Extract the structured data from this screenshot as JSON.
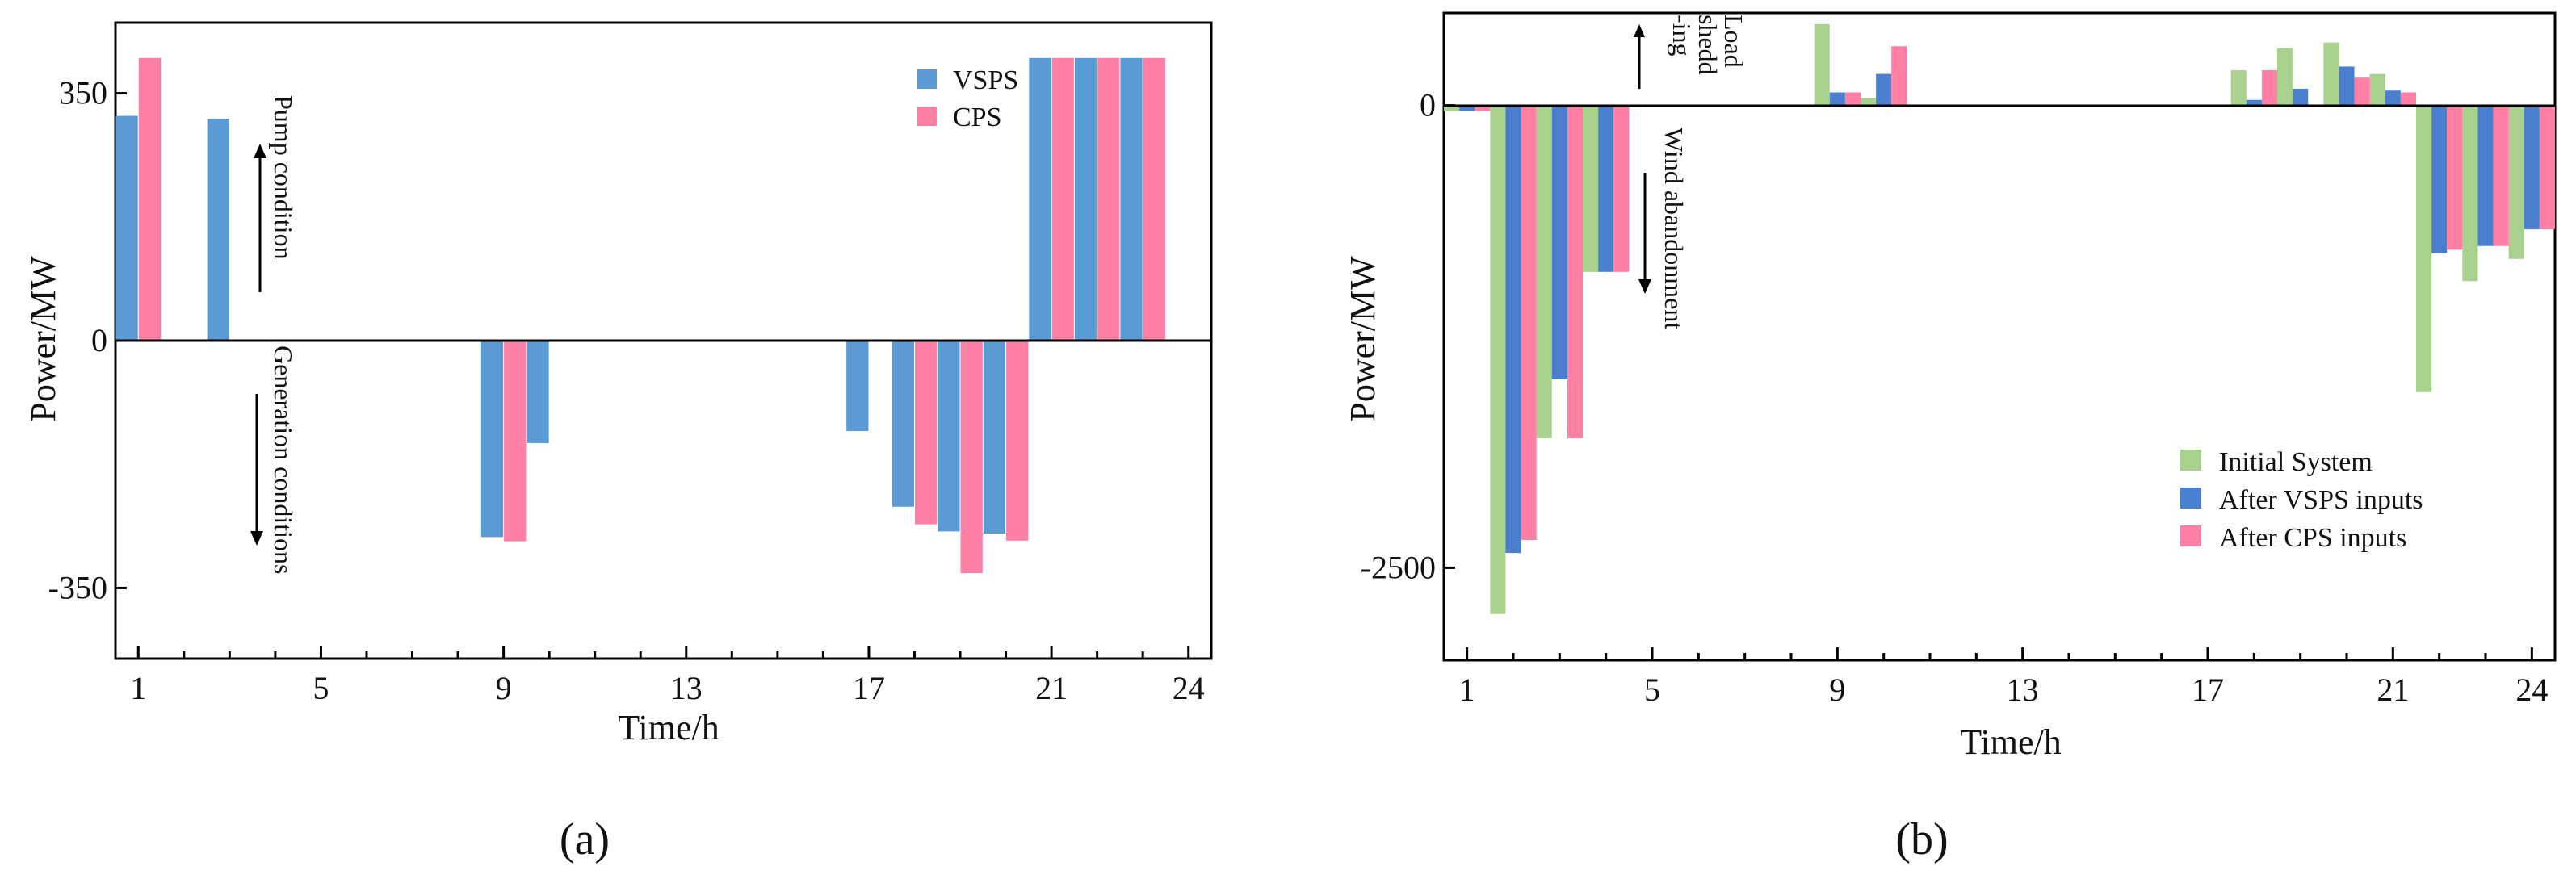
{
  "chart_data": [
    {
      "type": "bar",
      "title": "",
      "xlabel": "Time/h",
      "ylabel": "Power/MW",
      "xlim": [
        0.5,
        24.5
      ],
      "ylim": [
        -450,
        450
      ],
      "x_ticks": [
        1,
        5,
        9,
        13,
        17,
        21,
        24
      ],
      "y_ticks": [
        -350,
        0,
        350
      ],
      "grid": false,
      "legend_position": "top-right",
      "caption": "(a)",
      "annotations": [
        "Pump condition",
        "Generation conditions"
      ],
      "x": [
        1,
        2,
        3,
        4,
        5,
        6,
        7,
        8,
        9,
        10,
        11,
        12,
        13,
        14,
        15,
        16,
        17,
        18,
        19,
        20,
        21,
        22,
        23,
        24
      ],
      "series": [
        {
          "name": "VSPS",
          "color": "#5b9bd5",
          "values": [
            318,
            0,
            314,
            0,
            0,
            0,
            0,
            0,
            -278,
            -145,
            0,
            0,
            0,
            0,
            0,
            0,
            -128,
            -235,
            -270,
            -273,
            400,
            400,
            400,
            0
          ]
        },
        {
          "name": "CPS",
          "color": "#ff7fa5",
          "values": [
            400,
            0,
            0,
            0,
            0,
            0,
            0,
            0,
            -284,
            0,
            0,
            0,
            0,
            0,
            0,
            0,
            0,
            -260,
            -329,
            -283,
            400,
            400,
            400,
            0
          ]
        }
      ]
    },
    {
      "type": "bar",
      "title": "",
      "xlabel": "Time/h",
      "ylabel": "Power/MW",
      "xlim": [
        0.5,
        24.5
      ],
      "ylim": [
        -3000,
        500
      ],
      "x_ticks": [
        1,
        5,
        9,
        13,
        17,
        21,
        24
      ],
      "y_ticks": [
        -2500,
        0
      ],
      "grid": false,
      "legend_position": "lower-right",
      "caption": "(b)",
      "annotations": [
        "Load",
        "shedd",
        "-ing",
        "Wind abandonment"
      ],
      "x": [
        1,
        2,
        3,
        4,
        5,
        6,
        7,
        8,
        9,
        10,
        11,
        12,
        13,
        14,
        15,
        16,
        17,
        18,
        19,
        20,
        21,
        22,
        23,
        24
      ],
      "series": [
        {
          "name": "Initial System",
          "color": "#a9d18e",
          "values": [
            -30,
            -2750,
            -1800,
            -900,
            0,
            0,
            0,
            0,
            440,
            40,
            0,
            0,
            0,
            0,
            0,
            0,
            0,
            190,
            310,
            340,
            170,
            -1550,
            -950,
            -830
          ]
        },
        {
          "name": "After VSPS inputs",
          "color": "#4a7fd0",
          "values": [
            -30,
            -2420,
            -1480,
            -900,
            0,
            0,
            0,
            0,
            70,
            170,
            0,
            0,
            0,
            0,
            0,
            0,
            0,
            30,
            90,
            210,
            80,
            -800,
            -760,
            -670
          ]
        },
        {
          "name": "After CPS inputs",
          "color": "#ff7fa5",
          "values": [
            -30,
            -2350,
            -1800,
            -900,
            0,
            0,
            0,
            0,
            70,
            320,
            0,
            0,
            0,
            0,
            0,
            0,
            0,
            190,
            0,
            150,
            70,
            -780,
            -760,
            -670
          ]
        }
      ]
    }
  ]
}
